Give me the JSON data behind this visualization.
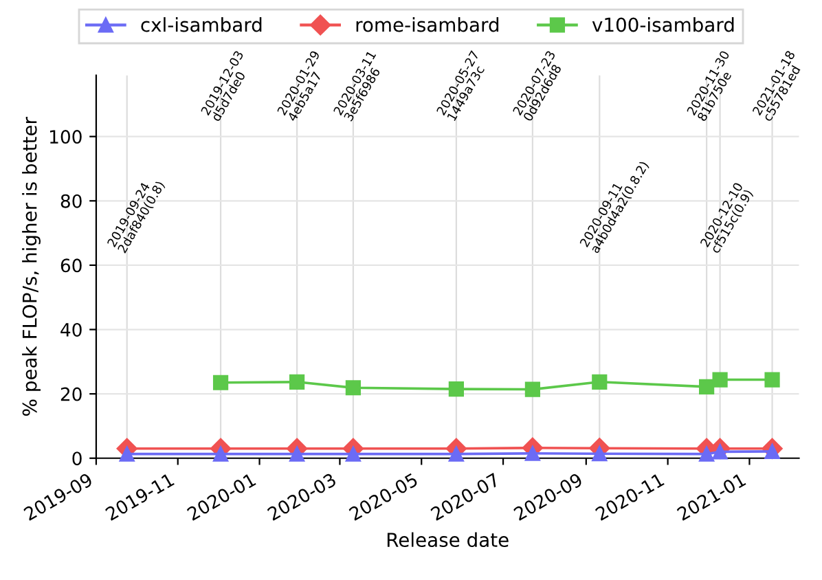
{
  "chart_data": {
    "type": "line",
    "xlabel": "Release date",
    "ylabel": "% peak FLOP/s, higher is better",
    "x": [
      "2019-09-24",
      "2019-12-03",
      "2020-01-29",
      "2020-03-11",
      "2020-05-27",
      "2020-07-23",
      "2020-09-11",
      "2020-11-30",
      "2020-12-10",
      "2021-01-18"
    ],
    "series": [
      {
        "name": "cxl-isambard",
        "color": "#6b6bf5",
        "marker": "triangle",
        "values": [
          1.3,
          1.3,
          1.3,
          1.3,
          1.3,
          1.5,
          1.4,
          1.3,
          2.0,
          2.1
        ]
      },
      {
        "name": "rome-isambard",
        "color": "#f05252",
        "marker": "diamond",
        "values": [
          3.0,
          3.0,
          3.0,
          3.0,
          3.0,
          3.2,
          3.1,
          3.0,
          3.0,
          3.0
        ]
      },
      {
        "name": "v100-isambard",
        "color": "#5cc84a",
        "marker": "square",
        "values": [
          null,
          23.5,
          23.7,
          21.9,
          21.5,
          21.4,
          23.7,
          22.2,
          24.4,
          24.4
        ]
      }
    ],
    "xlim": [
      "2019-09-01",
      "2021-02-07"
    ],
    "xticks": [
      {
        "value": "2019-09-01",
        "label": "2019-09"
      },
      {
        "value": "2019-11-01",
        "label": "2019-11"
      },
      {
        "value": "2020-01-01",
        "label": "2020-01"
      },
      {
        "value": "2020-03-01",
        "label": "2020-03"
      },
      {
        "value": "2020-05-01",
        "label": "2020-05"
      },
      {
        "value": "2020-07-01",
        "label": "2020-07"
      },
      {
        "value": "2020-09-01",
        "label": "2020-09"
      },
      {
        "value": "2020-11-01",
        "label": "2020-11"
      },
      {
        "value": "2021-01-01",
        "label": "2021-01"
      }
    ],
    "ylim": [
      0,
      119
    ],
    "yticks": [
      0,
      20,
      40,
      60,
      80,
      100
    ],
    "grid": "y",
    "legend": "top",
    "line_style": "solid",
    "ref_lines": [
      {
        "axis": "x",
        "value": "2019-09-24",
        "color": "#dddddd"
      },
      {
        "axis": "x",
        "value": "2019-12-03",
        "color": "#dddddd"
      },
      {
        "axis": "x",
        "value": "2020-01-29",
        "color": "#dddddd"
      },
      {
        "axis": "x",
        "value": "2020-03-11",
        "color": "#dddddd"
      },
      {
        "axis": "x",
        "value": "2020-05-27",
        "color": "#dddddd"
      },
      {
        "axis": "x",
        "value": "2020-07-23",
        "color": "#dddddd"
      },
      {
        "axis": "x",
        "value": "2020-09-11",
        "color": "#dddddd"
      },
      {
        "axis": "x",
        "value": "2020-11-30",
        "color": "#dddddd"
      },
      {
        "axis": "x",
        "value": "2020-12-10",
        "color": "#dddddd"
      },
      {
        "axis": "x",
        "value": "2021-01-18",
        "color": "#dddddd"
      }
    ],
    "annotations": [
      {
        "text": "2019-09-24\n2daf840(0.8)",
        "x": "2019-09-24",
        "y": 63
      },
      {
        "text": "2019-12-03\nd5d7de0",
        "x": "2019-12-03",
        "y": 104
      },
      {
        "text": "2020-01-29\n4eb5a17",
        "x": "2020-01-29",
        "y": 104
      },
      {
        "text": "2020-03-11\n3e5f6986",
        "x": "2020-03-11",
        "y": 104
      },
      {
        "text": "2020-05-27\n1449a73c",
        "x": "2020-05-27",
        "y": 104
      },
      {
        "text": "2020-07-23\n0d92d6d8",
        "x": "2020-07-23",
        "y": 104
      },
      {
        "text": "2020-09-11\na4b0d4a2(0.8.2)",
        "x": "2020-09-11",
        "y": 63
      },
      {
        "text": "2020-11-30\n81b750e",
        "x": "2020-11-30",
        "y": 104
      },
      {
        "text": "2020-12-10\ncf515c(0.9)",
        "x": "2020-12-10",
        "y": 63
      },
      {
        "text": "2021-01-18\nc55781ed",
        "x": "2021-01-18",
        "y": 104
      }
    ]
  }
}
